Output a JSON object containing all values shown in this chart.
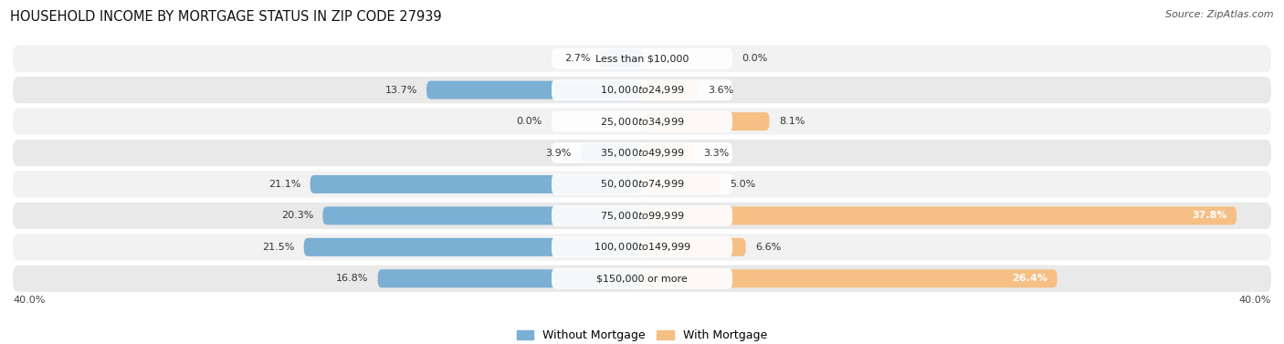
{
  "title": "HOUSEHOLD INCOME BY MORTGAGE STATUS IN ZIP CODE 27939",
  "source": "Source: ZipAtlas.com",
  "categories": [
    "Less than $10,000",
    "$10,000 to $24,999",
    "$25,000 to $34,999",
    "$35,000 to $49,999",
    "$50,000 to $74,999",
    "$75,000 to $99,999",
    "$100,000 to $149,999",
    "$150,000 or more"
  ],
  "without_mortgage": [
    2.7,
    13.7,
    0.0,
    3.9,
    21.1,
    20.3,
    21.5,
    16.8
  ],
  "with_mortgage": [
    0.0,
    3.6,
    8.1,
    3.3,
    5.0,
    37.8,
    6.6,
    26.4
  ],
  "color_without": "#7BAFD4",
  "color_with": "#F5BF85",
  "axis_max": 40.0,
  "row_bg_odd": "#F2F2F2",
  "row_bg_even": "#E9E9E9",
  "label_fontsize": 8.0,
  "title_fontsize": 10.5,
  "source_fontsize": 8.0,
  "legend_fontsize": 9.0,
  "cat_label_fontsize": 8.0
}
